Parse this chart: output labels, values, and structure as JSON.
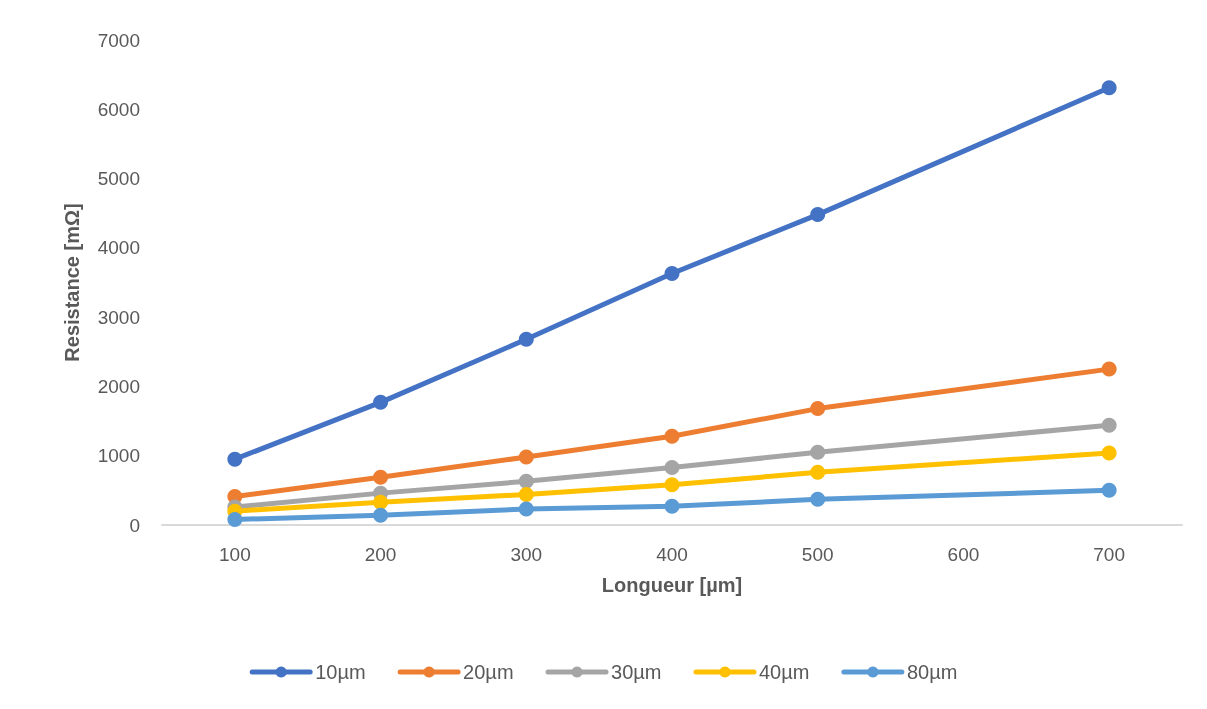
{
  "chart_data": {
    "type": "line",
    "xlabel": "Longueur [µm]",
    "ylabel": "Resistance [mΩ]",
    "categories": [
      "100",
      "200",
      "300",
      "400",
      "500",
      "600",
      "700"
    ],
    "ylim": [
      0,
      7000
    ],
    "yticks": [
      0,
      1000,
      2000,
      3000,
      4000,
      5000,
      6000,
      7000
    ],
    "grid": false,
    "legend": "bottom",
    "marker": "circle",
    "line_style": "solid",
    "series": [
      {
        "name": "10µm",
        "color": "#4472c4",
        "values": [
          950,
          1770,
          2680,
          3630,
          4480,
          null,
          6310
        ]
      },
      {
        "name": "20µm",
        "color": "#ed7d31",
        "values": [
          410,
          690,
          980,
          1280,
          1680,
          null,
          2250
        ]
      },
      {
        "name": "30µm",
        "color": "#a5a5a5",
        "values": [
          260,
          460,
          630,
          830,
          1050,
          null,
          1440
        ]
      },
      {
        "name": "40µm",
        "color": "#ffc000",
        "values": [
          200,
          330,
          440,
          580,
          760,
          null,
          1040
        ]
      },
      {
        "name": "80µm",
        "color": "#5b9bd5",
        "values": [
          80,
          140,
          230,
          270,
          370,
          null,
          500
        ]
      }
    ]
  }
}
